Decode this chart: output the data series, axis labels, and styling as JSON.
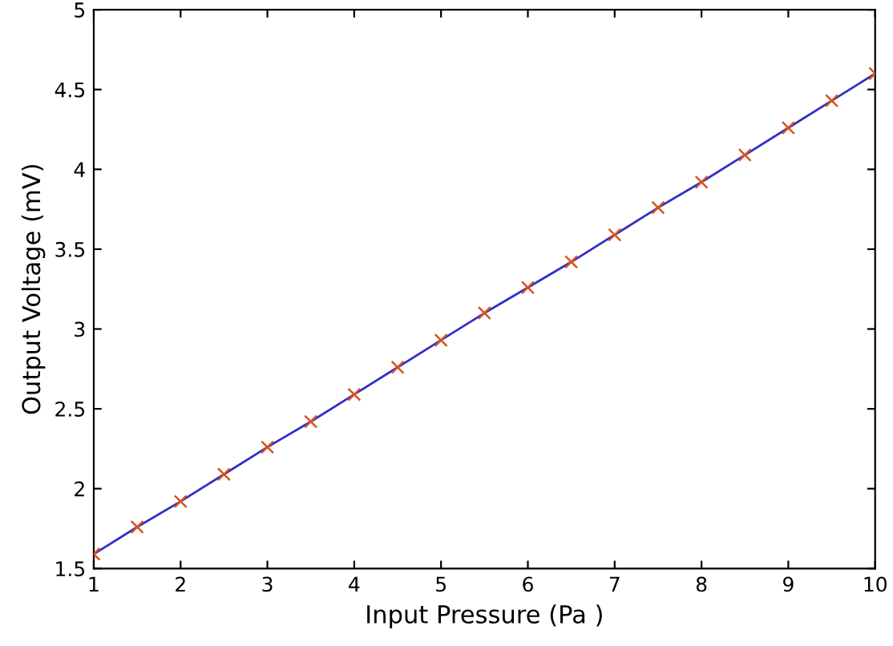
{
  "chart_data": {
    "type": "line",
    "xlabel": "Input Pressure (Pa )",
    "ylabel": "Output Voltage (mV)",
    "x": [
      1,
      1.5,
      2,
      2.5,
      3,
      3.5,
      4,
      4.5,
      5,
      5.5,
      6,
      6.5,
      7,
      7.5,
      8,
      8.5,
      9,
      9.5,
      10
    ],
    "series": [
      {
        "color": "#2f2fc8",
        "marker": "none",
        "values": [
          1.59,
          1.76,
          1.92,
          2.09,
          2.26,
          2.42,
          2.59,
          2.76,
          2.93,
          3.1,
          3.26,
          3.42,
          3.59,
          3.76,
          3.92,
          4.09,
          4.26,
          4.43,
          4.6
        ]
      },
      {
        "type": "scatter",
        "marker": "cross",
        "color": "#d95319",
        "values": [
          1.59,
          1.76,
          1.92,
          2.09,
          2.26,
          2.42,
          2.59,
          2.76,
          2.93,
          3.1,
          3.26,
          3.42,
          3.59,
          3.76,
          3.92,
          4.09,
          4.26,
          4.43,
          4.6
        ]
      }
    ],
    "xlim": [
      1,
      10
    ],
    "xticks": [
      1,
      2,
      3,
      4,
      5,
      6,
      7,
      8,
      9,
      10
    ],
    "ylim": [
      1.5,
      5
    ],
    "yticks": [
      1.5,
      2,
      2.5,
      3,
      3.5,
      4,
      4.5,
      5
    ],
    "grid": false,
    "legend": false
  }
}
